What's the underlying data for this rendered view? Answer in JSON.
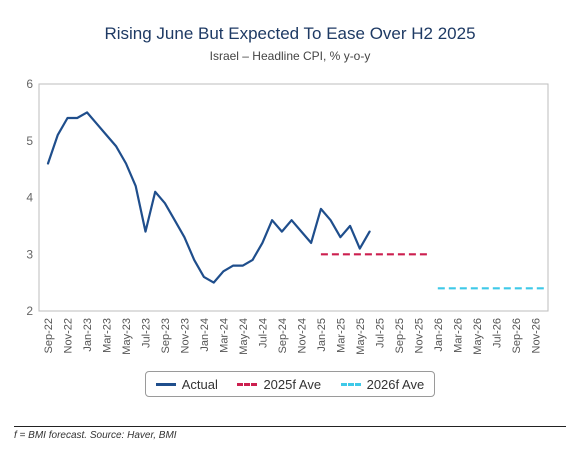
{
  "chart_data": {
    "type": "line",
    "title": "Rising June But Expected To Ease Over H2 2025",
    "subtitle": "Israel – Headline CPI, % y-o-y",
    "ylim": [
      2,
      6
    ],
    "yticks": [
      2,
      3,
      4,
      5,
      6
    ],
    "tick_labels": [
      "Sep-22",
      "Nov-22",
      "Jan-23",
      "Mar-23",
      "May-23",
      "Jul-23",
      "Sep-23",
      "Nov-23",
      "Jan-24",
      "Mar-24",
      "May-24",
      "Jul-24",
      "Sep-24",
      "Nov-24",
      "Jan-25",
      "Mar-25",
      "May-25",
      "Jul-25",
      "Sep-25",
      "Nov-25",
      "Jan-26",
      "Mar-26",
      "May-26",
      "Jul-26",
      "Sep-26",
      "Nov-26"
    ],
    "x_months": [
      "Sep-22",
      "Oct-22",
      "Nov-22",
      "Dec-22",
      "Jan-23",
      "Feb-23",
      "Mar-23",
      "Apr-23",
      "May-23",
      "Jun-23",
      "Jul-23",
      "Aug-23",
      "Sep-23",
      "Oct-23",
      "Nov-23",
      "Dec-23",
      "Jan-24",
      "Feb-24",
      "Mar-24",
      "Apr-24",
      "May-24",
      "Jun-24",
      "Jul-24",
      "Aug-24",
      "Sep-24",
      "Oct-24",
      "Nov-24",
      "Dec-24",
      "Jan-25",
      "Feb-25",
      "Mar-25",
      "Apr-25",
      "May-25",
      "Jun-25",
      "Jul-25",
      "Aug-25",
      "Sep-25",
      "Oct-25",
      "Nov-25",
      "Dec-25",
      "Jan-26",
      "Feb-26",
      "Mar-26",
      "Apr-26",
      "May-26",
      "Jun-26",
      "Jul-26",
      "Aug-26",
      "Sep-26",
      "Oct-26",
      "Nov-26",
      "Dec-26"
    ],
    "series": [
      {
        "name": "Actual",
        "style": "solid",
        "color": "#1f4e8c",
        "x": [
          "Sep-22",
          "Oct-22",
          "Nov-22",
          "Dec-22",
          "Jan-23",
          "Feb-23",
          "Mar-23",
          "Apr-23",
          "May-23",
          "Jun-23",
          "Jul-23",
          "Aug-23",
          "Sep-23",
          "Oct-23",
          "Nov-23",
          "Dec-23",
          "Jan-24",
          "Feb-24",
          "Mar-24",
          "Apr-24",
          "May-24",
          "Jun-24",
          "Jul-24",
          "Aug-24",
          "Sep-24",
          "Oct-24",
          "Nov-24",
          "Dec-24",
          "Jan-25",
          "Feb-25",
          "Mar-25",
          "Apr-25",
          "May-25",
          "Jun-25"
        ],
        "values": [
          4.6,
          5.1,
          5.4,
          5.4,
          5.5,
          5.3,
          5.1,
          4.9,
          4.6,
          4.2,
          3.4,
          4.1,
          3.9,
          3.6,
          3.3,
          2.9,
          2.6,
          2.5,
          2.7,
          2.8,
          2.8,
          2.9,
          3.2,
          3.6,
          3.4,
          3.6,
          3.4,
          3.2,
          3.8,
          3.6,
          3.3,
          3.5,
          3.1,
          3.4
        ]
      },
      {
        "name": "2025f Ave",
        "style": "dashed",
        "color": "#cc1f4f",
        "x": [
          "Jan-25",
          "Dec-25"
        ],
        "values": [
          3.0,
          3.0
        ]
      },
      {
        "name": "2026f Ave",
        "style": "dashed",
        "color": "#3ec9e8",
        "x": [
          "Jan-26",
          "Dec-26"
        ],
        "values": [
          2.4,
          2.4
        ]
      }
    ],
    "legend": "bottom-center"
  },
  "footnote": "f = BMI forecast. Source: Haver, BMI"
}
